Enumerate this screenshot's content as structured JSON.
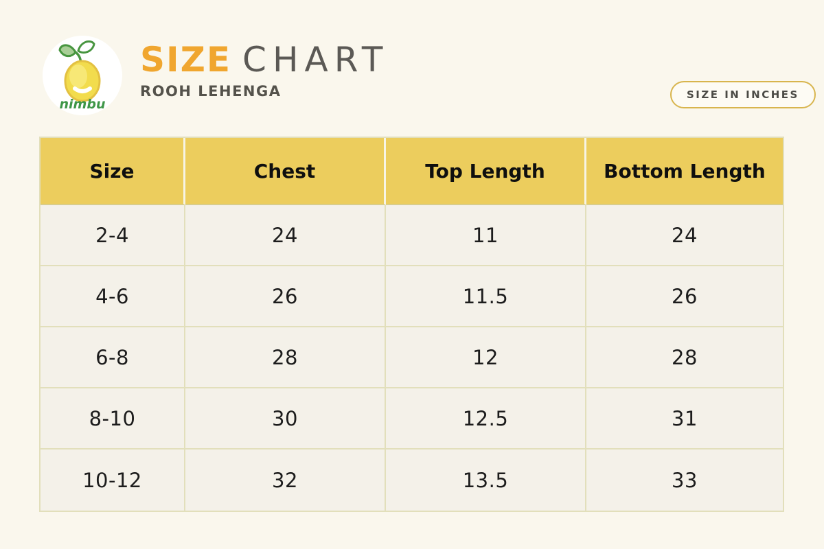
{
  "logo": {
    "brand": "nimbu",
    "icon": "lemon-icon"
  },
  "header": {
    "title_primary": "SIZE",
    "title_secondary": "CHART",
    "subtitle": "ROOH LEHENGA"
  },
  "badge": {
    "label": "SIZE IN INCHES"
  },
  "table": {
    "columns": [
      "Size",
      "Chest",
      "Top Length",
      "Bottom Length"
    ],
    "rows": [
      [
        "2-4",
        "24",
        "11",
        "24"
      ],
      [
        "4-6",
        "26",
        "11.5",
        "26"
      ],
      [
        "6-8",
        "28",
        "12",
        "28"
      ],
      [
        "8-10",
        "30",
        "12.5",
        "31"
      ],
      [
        "10-12",
        "32",
        "13.5",
        "33"
      ]
    ]
  },
  "chart_data": {
    "type": "table",
    "title": "SIZE CHART",
    "subtitle": "ROOH LEHENGA",
    "unit": "inches",
    "columns": [
      "Size",
      "Chest",
      "Top Length",
      "Bottom Length"
    ],
    "rows": [
      [
        "2-4",
        24,
        11,
        24
      ],
      [
        "4-6",
        26,
        11.5,
        26
      ],
      [
        "6-8",
        28,
        12,
        28
      ],
      [
        "8-10",
        30,
        12.5,
        31
      ],
      [
        "10-12",
        32,
        13.5,
        33
      ]
    ]
  },
  "colors": {
    "page_background": "#FAF7ED",
    "header_yellow": "#ECCD5D",
    "title_orange": "#F0A62F",
    "title_gray": "#5B5955",
    "badge_border_gold": "#D8B54E",
    "cell_background": "#F4F1E9",
    "grid_line": "#E2DFBB",
    "text_dark": "#1C1C1C",
    "brand_green": "#3E9647"
  }
}
